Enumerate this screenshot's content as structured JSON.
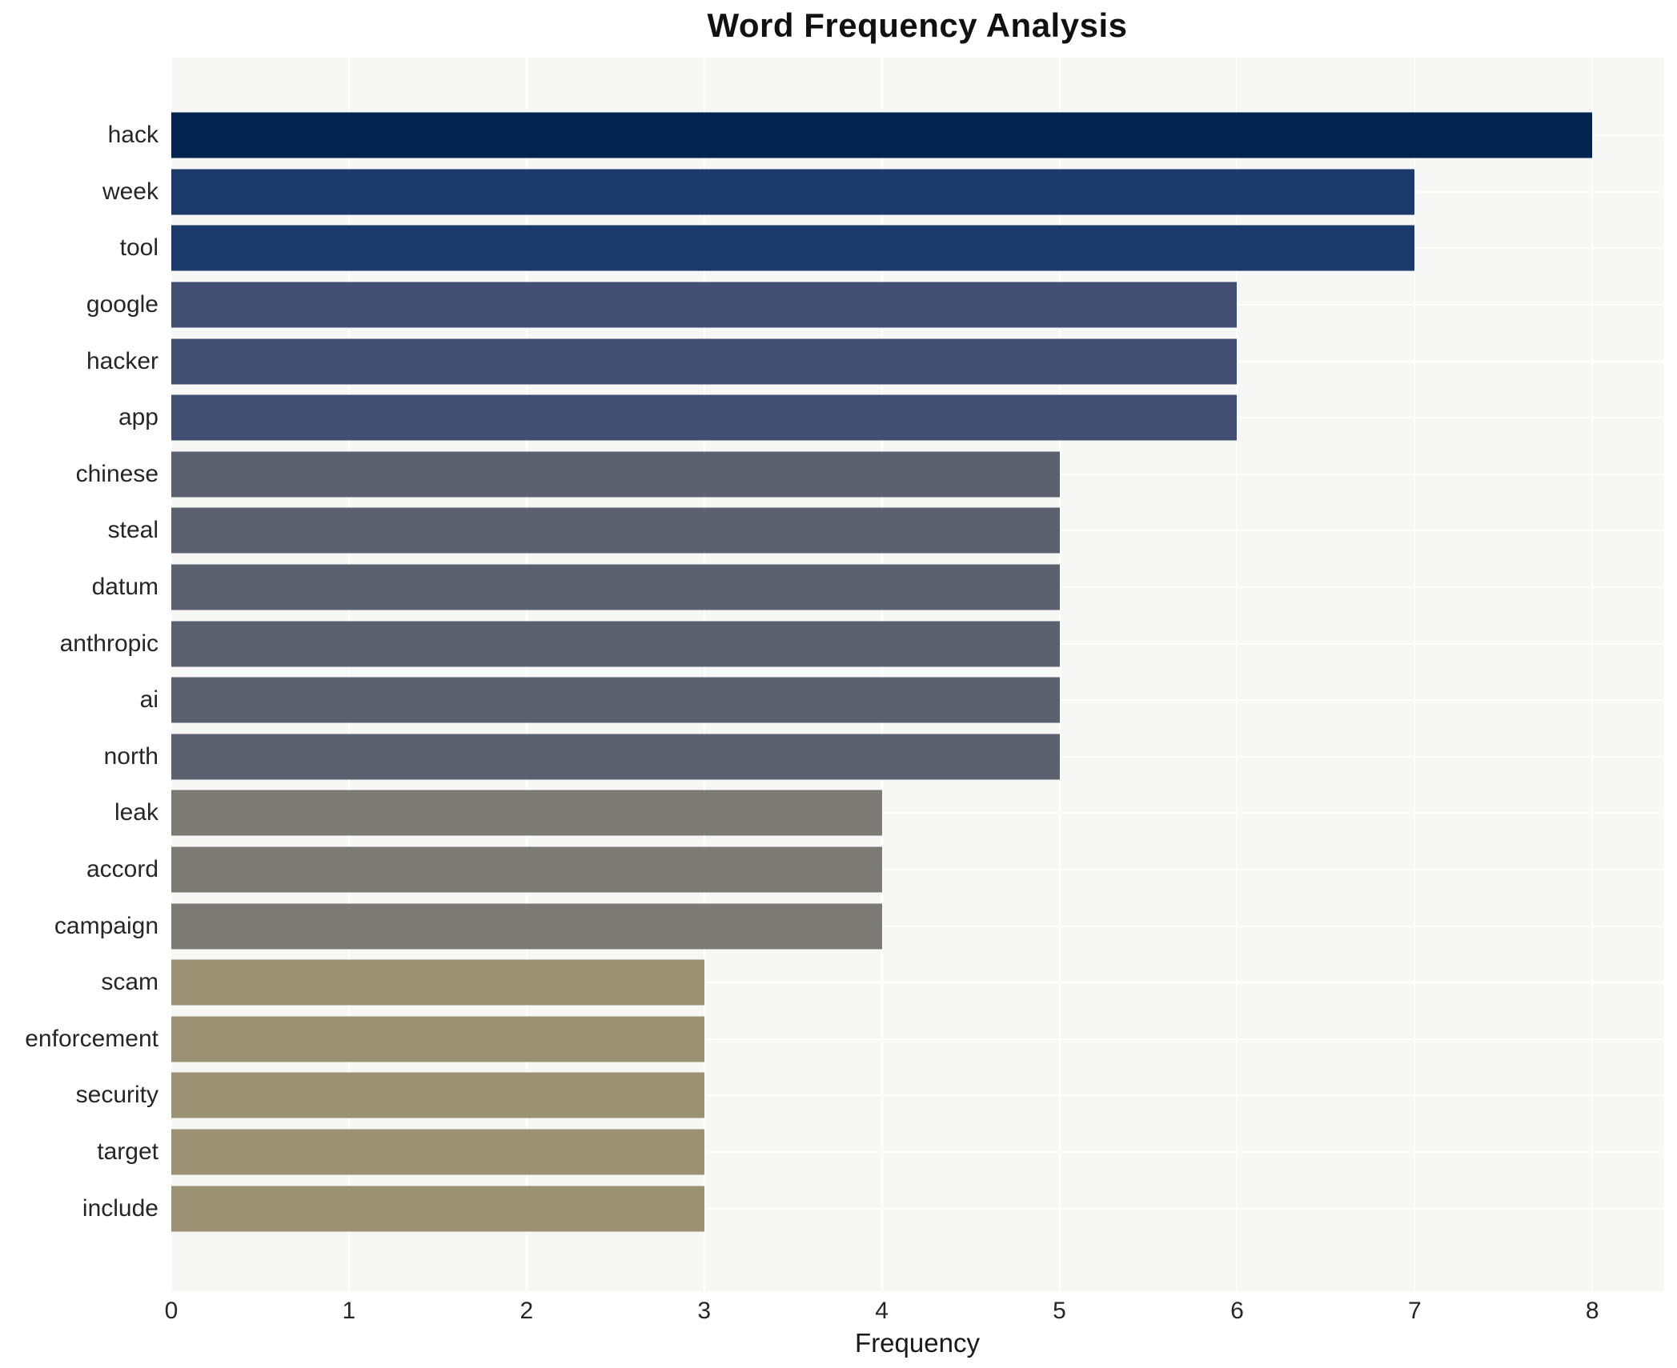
{
  "chart_data": {
    "type": "bar",
    "orientation": "horizontal",
    "title": "Word Frequency Analysis",
    "xlabel": "Frequency",
    "ylabel": "",
    "categories": [
      "hack",
      "week",
      "tool",
      "google",
      "hacker",
      "app",
      "chinese",
      "steal",
      "datum",
      "anthropic",
      "ai",
      "north",
      "leak",
      "accord",
      "campaign",
      "scam",
      "enforcement",
      "security",
      "target",
      "include"
    ],
    "values": [
      8,
      7,
      7,
      6,
      6,
      6,
      5,
      5,
      5,
      5,
      5,
      5,
      4,
      4,
      4,
      3,
      3,
      3,
      3,
      3
    ],
    "bar_colors": [
      "#01234e",
      "#1b3a6b",
      "#1b3a6b",
      "#434f72",
      "#434f72",
      "#434f72",
      "#5b616e",
      "#5b616e",
      "#5b616e",
      "#5b616e",
      "#5b616e",
      "#5b616e",
      "#7b7a74",
      "#7b7a74",
      "#7b7a74",
      "#9a9272",
      "#9a9272",
      "#9a9272",
      "#9a9272",
      "#9a9272"
    ],
    "x_ticks": [
      0,
      1,
      2,
      3,
      4,
      5,
      6,
      7,
      8
    ],
    "xlim": [
      0,
      8.4
    ],
    "grid": true,
    "legend": null,
    "colors": {
      "figure_background": "#ffffff",
      "plot_background": "#f7f7f5",
      "grid": "#ffffff",
      "text": "#262626"
    }
  }
}
